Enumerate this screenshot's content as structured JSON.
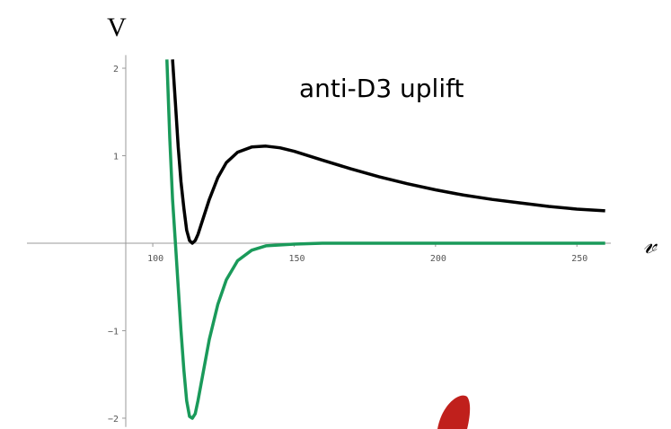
{
  "chart_data": {
    "type": "line",
    "title": "anti-D3 uplift",
    "y_label": "V",
    "x_label": "𝓋",
    "xlim": [
      55.5,
      262
    ],
    "ylim": [
      -2.1,
      2.15
    ],
    "xticks": [
      100,
      150,
      200,
      250
    ],
    "yticks": [
      {
        "value": -2,
        "label": "−2"
      },
      {
        "value": -1,
        "label": "−1"
      },
      1,
      2
    ],
    "series": [
      {
        "color": "#000000",
        "x": [
          107,
          108,
          109,
          110,
          111,
          112,
          113,
          114,
          115,
          116,
          118,
          120,
          123,
          126,
          130,
          135,
          140,
          145,
          150,
          160,
          170,
          180,
          190,
          200,
          210,
          220,
          230,
          240,
          250,
          260
        ],
        "values": [
          2.1,
          1.6,
          1.1,
          0.7,
          0.4,
          0.15,
          0.03,
          0,
          0.03,
          0.1,
          0.3,
          0.5,
          0.75,
          0.92,
          1.04,
          1.1,
          1.11,
          1.09,
          1.05,
          0.95,
          0.85,
          0.76,
          0.68,
          0.61,
          0.55,
          0.5,
          0.46,
          0.42,
          0.39,
          0.37
        ]
      },
      {
        "color": "#1a9a5a",
        "x": [
          105,
          106,
          107,
          108,
          109,
          110,
          111,
          112,
          113,
          114,
          115,
          116,
          118,
          120,
          123,
          126,
          130,
          135,
          140,
          150,
          160,
          200,
          260
        ],
        "values": [
          2.1,
          1.2,
          0.5,
          0,
          -0.5,
          -1.0,
          -1.45,
          -1.8,
          -1.98,
          -2.0,
          -1.95,
          -1.8,
          -1.45,
          -1.1,
          -0.7,
          -0.42,
          -0.2,
          -0.08,
          -0.03,
          -0.01,
          0,
          0,
          0
        ]
      }
    ]
  }
}
